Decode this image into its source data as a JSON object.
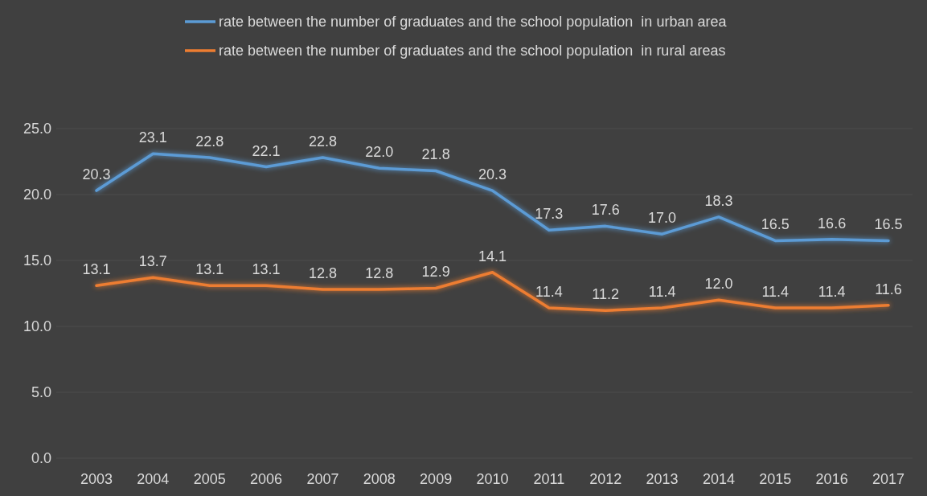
{
  "chart_data": {
    "type": "line",
    "categories": [
      "2003",
      "2004",
      "2005",
      "2006",
      "2007",
      "2008",
      "2009",
      "2010",
      "2011",
      "2012",
      "2013",
      "2014",
      "2015",
      "2016",
      "2017"
    ],
    "series": [
      {
        "name": "rate between the number of graduates and the school population  in urban area",
        "color": "#5b9bd5",
        "values": [
          20.3,
          23.1,
          22.8,
          22.1,
          22.8,
          22.0,
          21.8,
          20.3,
          17.3,
          17.6,
          17.0,
          18.3,
          16.5,
          16.6,
          16.5
        ],
        "value_labels": [
          "20.3",
          "23.1",
          "22.8",
          "22.1",
          "22.8",
          "22.0",
          "21.8",
          "20.3",
          "17.3",
          "17.6",
          "17.0",
          "18.3",
          "16.5",
          "16.6",
          "16.5"
        ]
      },
      {
        "name": "rate between the number of graduates and the school population  in rural areas",
        "color": "#ed7d31",
        "values": [
          13.1,
          13.7,
          13.1,
          13.1,
          12.8,
          12.8,
          12.9,
          14.1,
          11.4,
          11.2,
          11.4,
          12.0,
          11.4,
          11.4,
          11.6
        ],
        "value_labels": [
          "13.1",
          "13.7",
          "13.1",
          "13.1",
          "12.8",
          "12.8",
          "12.9",
          "14.1",
          "11.4",
          "11.2",
          "11.4",
          "12.0",
          "11.4",
          "11.4",
          "11.6"
        ]
      }
    ],
    "ylim": [
      0,
      25
    ],
    "yticks": [
      {
        "value": 0,
        "label": "0.0"
      },
      {
        "value": 5,
        "label": "5.0"
      },
      {
        "value": 10,
        "label": "10.0"
      },
      {
        "value": 15,
        "label": "15.0"
      },
      {
        "value": 20,
        "label": "20.0"
      },
      {
        "value": 25,
        "label": "25.0"
      }
    ],
    "grid": "y",
    "legend": "top",
    "marker": "none",
    "line_style": "solid"
  }
}
